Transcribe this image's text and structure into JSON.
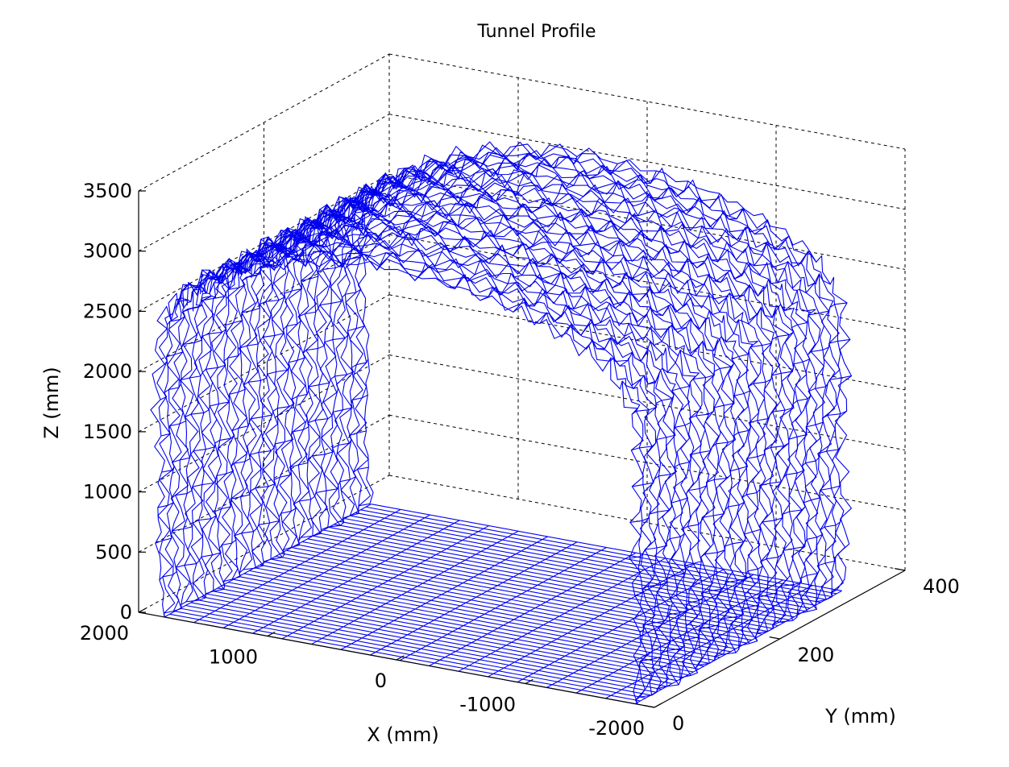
{
  "colors": {
    "mesh": "#0000ee",
    "axes": "#000000",
    "grid": "#000000",
    "background": "#ffffff"
  },
  "chart_data": {
    "type": "mesh3d",
    "title": "Tunnel Profile",
    "xlabel": "X (mm)",
    "ylabel": "Y (mm)",
    "zlabel": "Z (mm)",
    "xlim": [
      -2000,
      2000
    ],
    "ylim": [
      0,
      400
    ],
    "zlim": [
      0,
      3500
    ],
    "x_ticks": [
      2000,
      1000,
      0,
      -1000,
      -2000
    ],
    "x_tick_labels": [
      "2000",
      "1000",
      "0",
      "-1000",
      "-2000"
    ],
    "y_ticks": [
      0,
      200,
      400
    ],
    "y_tick_labels": [
      "0",
      "200",
      "400"
    ],
    "z_ticks": [
      0,
      500,
      1000,
      1500,
      2000,
      2500,
      3000,
      3500
    ],
    "z_tick_labels": [
      "0",
      "500",
      "1000",
      "1500",
      "2000",
      "2500",
      "3000",
      "3500"
    ],
    "grid": true,
    "series_color": "#0000ee",
    "profile": {
      "description_units": "mm",
      "slice_count": 40,
      "slice_y_range": [
        0,
        330
      ],
      "cross_section": [
        {
          "x": 1800,
          "z": 0
        },
        {
          "x": 1850,
          "z": 600
        },
        {
          "x": 1820,
          "z": 1200
        },
        {
          "x": 1870,
          "z": 1800
        },
        {
          "x": 1830,
          "z": 2400
        },
        {
          "x": 1700,
          "z": 2700
        },
        {
          "x": 1300,
          "z": 2950
        },
        {
          "x": 800,
          "z": 3150
        },
        {
          "x": 200,
          "z": 3250
        },
        {
          "x": -400,
          "z": 3200
        },
        {
          "x": -900,
          "z": 3100
        },
        {
          "x": -1300,
          "z": 2950
        },
        {
          "x": -1650,
          "z": 2750
        },
        {
          "x": -1850,
          "z": 2400
        },
        {
          "x": -1880,
          "z": 1800
        },
        {
          "x": -1840,
          "z": 1200
        },
        {
          "x": -1880,
          "z": 600
        },
        {
          "x": -1850,
          "z": 0
        }
      ]
    }
  }
}
